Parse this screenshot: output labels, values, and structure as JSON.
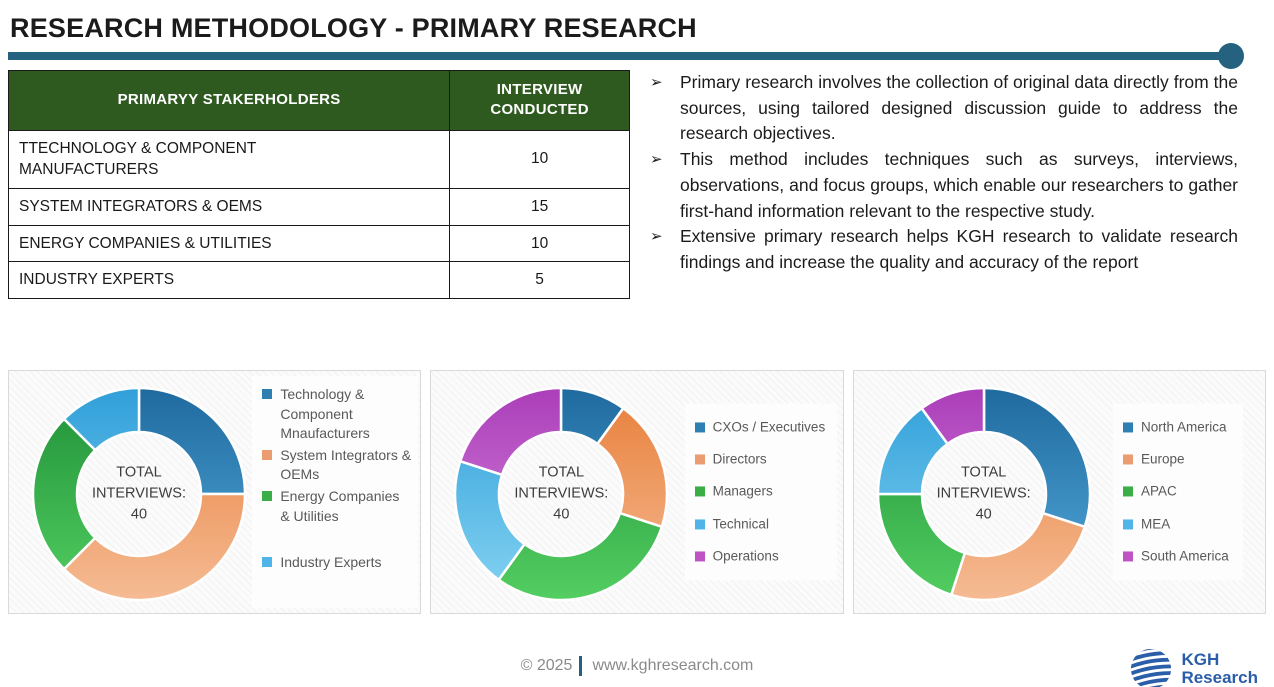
{
  "title": "RESEARCH METHODOLOGY - PRIMARY RESEARCH",
  "accent_colors": {
    "divider_teal": "#24627F",
    "table_header_green": "#2E5A20",
    "logo_blue": "#2B5EA8",
    "body_text": "#1b1b1b",
    "legend_text": "#595959",
    "footer_text": "#8a8a8a"
  },
  "table": {
    "headers": [
      "PRIMARYY STAKERHOLDERS",
      "INTERVIEW CONDUCTED"
    ],
    "rows": [
      [
        "TTECHNOLOGY & COMPONENT MANUFACTURERS",
        "10"
      ],
      [
        "SYSTEM INTEGRATORS & OEMS",
        "15"
      ],
      [
        "ENERGY COMPANIES & UTILITIES",
        "10"
      ],
      [
        "INDUSTRY EXPERTS",
        "5"
      ]
    ]
  },
  "bullet_icon": "➢",
  "bullets": [
    "Primary research involves the collection of original data directly from the sources, using tailored designed discussion guide to address the research objectives.",
    "This method includes techniques such as surveys, interviews, observations, and focus groups, which enable our researchers to gather first-hand information relevant to the respective study.",
    "Extensive primary research helps KGH research to validate research findings and increase the quality and accuracy of the report"
  ],
  "chart_data": {
    "type": "pie",
    "subtype": "donut",
    "legend_position": "right",
    "palette": {
      "blue": {
        "dark": "#1F6A9E",
        "light": "#55ABDE",
        "marker": "#2E7FB2"
      },
      "orange": {
        "dark": "#E87F3A",
        "light": "#F5BB94",
        "marker": "#EC9C71"
      },
      "green": {
        "dark": "#1F9038",
        "light": "#53CE61",
        "marker": "#3BAD46"
      },
      "lightblue": {
        "dark": "#309FD9",
        "light": "#85D3F2",
        "marker": "#4FB5E8"
      },
      "purple": {
        "dark": "#AB3EB9",
        "light": "#D88BE0",
        "marker": "#BF53C3"
      }
    },
    "charts": [
      {
        "name": "interviews-by-stakeholder",
        "total": 40,
        "center_label": "TOTAL\nINTERVIEWS:\n40",
        "segments": [
          {
            "label": "Technology & Component Mnaufacturers",
            "value": 10,
            "color": "blue"
          },
          {
            "label": "System Integrators & OEMs",
            "value": 15,
            "color": "orange"
          },
          {
            "label": "Energy Companies & Utilities",
            "value": 10,
            "color": "green"
          },
          {
            "label": "Industry Experts",
            "value": 5,
            "color": "lightblue"
          }
        ]
      },
      {
        "name": "interviews-by-designation",
        "total": 40,
        "center_label": "TOTAL\nINTERVIEWS:\n40",
        "segments": [
          {
            "label": "CXOs / Executives",
            "value": 4,
            "color": "blue"
          },
          {
            "label": "Directors",
            "value": 8,
            "color": "orange"
          },
          {
            "label": "Managers",
            "value": 12,
            "color": "green"
          },
          {
            "label": "Technical",
            "value": 8,
            "color": "lightblue"
          },
          {
            "label": "Operations",
            "value": 8,
            "color": "purple"
          }
        ]
      },
      {
        "name": "interviews-by-region",
        "total": 40,
        "center_label": "TOTAL\nINTERVIEWS:\n40",
        "segments": [
          {
            "label": "North America",
            "value": 12,
            "color": "blue"
          },
          {
            "label": "Europe",
            "value": 10,
            "color": "orange"
          },
          {
            "label": "APAC",
            "value": 8,
            "color": "green"
          },
          {
            "label": "MEA",
            "value": 6,
            "color": "lightblue"
          },
          {
            "label": "South America",
            "value": 4,
            "color": "purple"
          }
        ]
      }
    ]
  },
  "footer": {
    "copyright": "© 2025",
    "website": "www.kghresearch.com",
    "logo_line1": "KGH",
    "logo_line2": "Research"
  }
}
